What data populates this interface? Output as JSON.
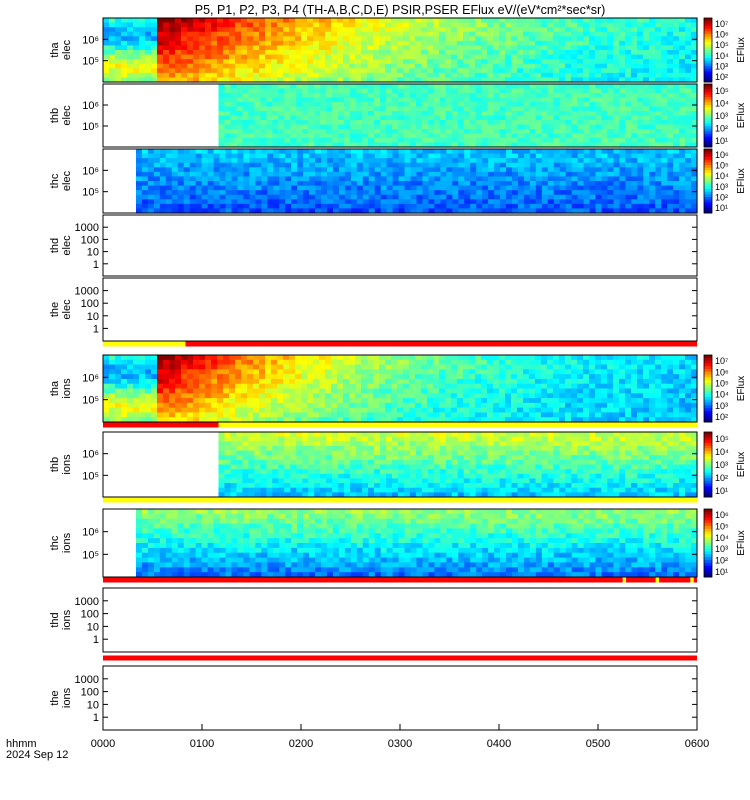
{
  "title": "P5, P1, P2, P3, P4 (TH-A,B,C,D,E) PSIR,PSER EFlux eV/(eV*cm²*sec*sr)",
  "footer": {
    "time_label": "hhmm",
    "date_label": "2024 Sep 12"
  },
  "colorbar_label": "EFlux",
  "chart_data": {
    "type": "heatmap",
    "x_axis": {
      "range": [
        "0000",
        "0600"
      ],
      "ticks": [
        "0000",
        "0100",
        "0200",
        "0300",
        "0400",
        "0500",
        "0600"
      ]
    },
    "panels": [
      {
        "probe": "tha",
        "species": "elec",
        "ylabel": [
          "tha",
          "elec"
        ],
        "yscale": "log",
        "yticks": [
          "10⁵",
          "10⁶"
        ],
        "data_start": "0000",
        "colorbar": [
          "10²",
          "10³",
          "10⁴",
          "10⁵",
          "10⁶",
          "10⁷"
        ],
        "pattern": "hot-decay"
      },
      {
        "probe": "thb",
        "species": "elec",
        "ylabel": [
          "thb",
          "elec"
        ],
        "yscale": "log",
        "yticks": [
          "10⁵",
          "10⁶"
        ],
        "data_start": "0110",
        "colorbar": [
          "10¹",
          "10²",
          "10³",
          "10⁴",
          "10⁵"
        ],
        "pattern": "flat-cyan"
      },
      {
        "probe": "thc",
        "species": "elec",
        "ylabel": [
          "thc",
          "elec"
        ],
        "yscale": "log",
        "yticks": [
          "10⁵",
          "10⁶"
        ],
        "data_start": "0020",
        "colorbar": [
          "10¹",
          "10²",
          "10³",
          "10⁴",
          "10⁵",
          "10⁶"
        ],
        "pattern": "blue"
      },
      {
        "probe": "thd",
        "species": "elec",
        "ylabel": [
          "thd",
          "elec"
        ],
        "yscale": "log",
        "yticks": [
          "1",
          "10",
          "100",
          "1000"
        ],
        "data_start": null
      },
      {
        "probe": "the",
        "species": "elec",
        "ylabel": [
          "the",
          "elec"
        ],
        "yscale": "log",
        "yticks": [
          "1",
          "10",
          "100",
          "1000"
        ],
        "data_start": null
      },
      {
        "probe": "tha",
        "species": "ions",
        "ylabel": [
          "tha",
          "ions"
        ],
        "yscale": "log",
        "yticks": [
          "10⁵",
          "10⁶"
        ],
        "data_start": "0000",
        "colorbar": [
          "10²",
          "10³",
          "10⁴",
          "10⁵",
          "10⁶",
          "10⁷"
        ],
        "pattern": "hot-decay-ions"
      },
      {
        "probe": "thb",
        "species": "ions",
        "ylabel": [
          "thb",
          "ions"
        ],
        "yscale": "log",
        "yticks": [
          "10⁵",
          "10⁶"
        ],
        "data_start": "0110",
        "colorbar": [
          "10¹",
          "10²",
          "10³",
          "10⁴",
          "10⁵"
        ],
        "pattern": "green-gradient"
      },
      {
        "probe": "thc",
        "species": "ions",
        "ylabel": [
          "thc",
          "ions"
        ],
        "yscale": "log",
        "yticks": [
          "10⁵",
          "10⁶"
        ],
        "data_start": "0020",
        "colorbar": [
          "10¹",
          "10²",
          "10³",
          "10⁴",
          "10⁵",
          "10⁶"
        ],
        "pattern": "blue-green"
      },
      {
        "probe": "thd",
        "species": "ions",
        "ylabel": [
          "thd",
          "ions"
        ],
        "yscale": "log",
        "yticks": [
          "1",
          "10",
          "100",
          "1000"
        ],
        "data_start": null
      },
      {
        "probe": "the",
        "species": "ions",
        "ylabel": [
          "the",
          "ions"
        ],
        "yscale": "log",
        "yticks": [
          "1",
          "10",
          "100",
          "1000"
        ],
        "data_start": null
      }
    ],
    "mode_bars": [
      {
        "after_panel": "the elec",
        "segments": [
          {
            "from": "0000",
            "to": "0050",
            "color": "#ffff00"
          },
          {
            "from": "0050",
            "to": "0600",
            "color": "#ff0000"
          }
        ]
      },
      {
        "after_panel": "tha ions",
        "segments": [
          {
            "from": "0000",
            "to": "0110",
            "color": "#ff0000"
          },
          {
            "from": "0110",
            "to": "0600",
            "color": "#ffff00"
          }
        ]
      },
      {
        "after_panel": "thb ions",
        "segments": [
          {
            "from": "0000",
            "to": "0600",
            "color": "#ffff00"
          }
        ]
      },
      {
        "after_panel": "thc ions",
        "segments": [
          {
            "from": "0000",
            "to": "0515",
            "color": "#ff0000"
          },
          {
            "from": "0515",
            "to": "0517",
            "color": "#ffff00"
          },
          {
            "from": "0517",
            "to": "0535",
            "color": "#ff0000"
          },
          {
            "from": "0535",
            "to": "0537",
            "color": "#ffff00"
          },
          {
            "from": "0537",
            "to": "0556",
            "color": "#ff0000"
          },
          {
            "from": "0556",
            "to": "0558",
            "color": "#ffff00"
          },
          {
            "from": "0558",
            "to": "0600",
            "color": "#ff0000"
          }
        ]
      },
      {
        "after_panel": "thd ions",
        "segments": [
          {
            "from": "0000",
            "to": "0600",
            "color": "#ff0000"
          }
        ]
      }
    ]
  }
}
